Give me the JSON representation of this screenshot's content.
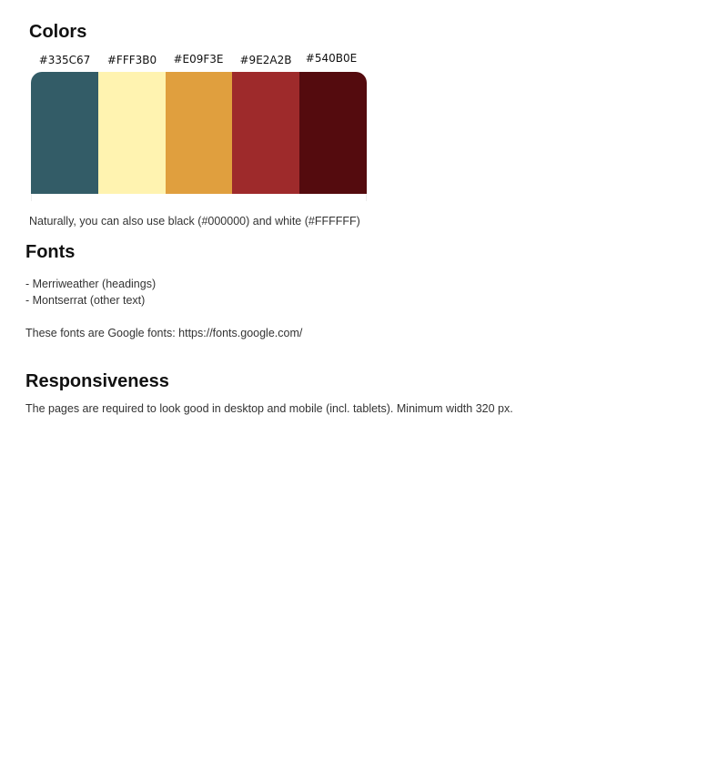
{
  "colors": {
    "heading": "Colors",
    "swatches": [
      {
        "label": "#335C67",
        "color": "#335C67"
      },
      {
        "label": "#FFF3B0",
        "color": "#FFF3B0"
      },
      {
        "label": "#E09F3E",
        "color": "#E09F3E"
      },
      {
        "label": "#9E2A2B",
        "color": "#9E2A2B"
      },
      {
        "label": "#540B0E",
        "color": "#540B0E"
      }
    ],
    "note": "Naturally, you can also use black (#000000) and white (#FFFFFF)"
  },
  "fonts": {
    "heading": "Fonts",
    "items": [
      "- Merriweather (headings)",
      "- Montserrat (other text)"
    ],
    "note": "These fonts are Google fonts: https://fonts.google.com/"
  },
  "responsiveness": {
    "heading": "Responsiveness",
    "text": "The pages are required to look good in desktop and mobile (incl. tablets). Minimum width 320 px."
  }
}
